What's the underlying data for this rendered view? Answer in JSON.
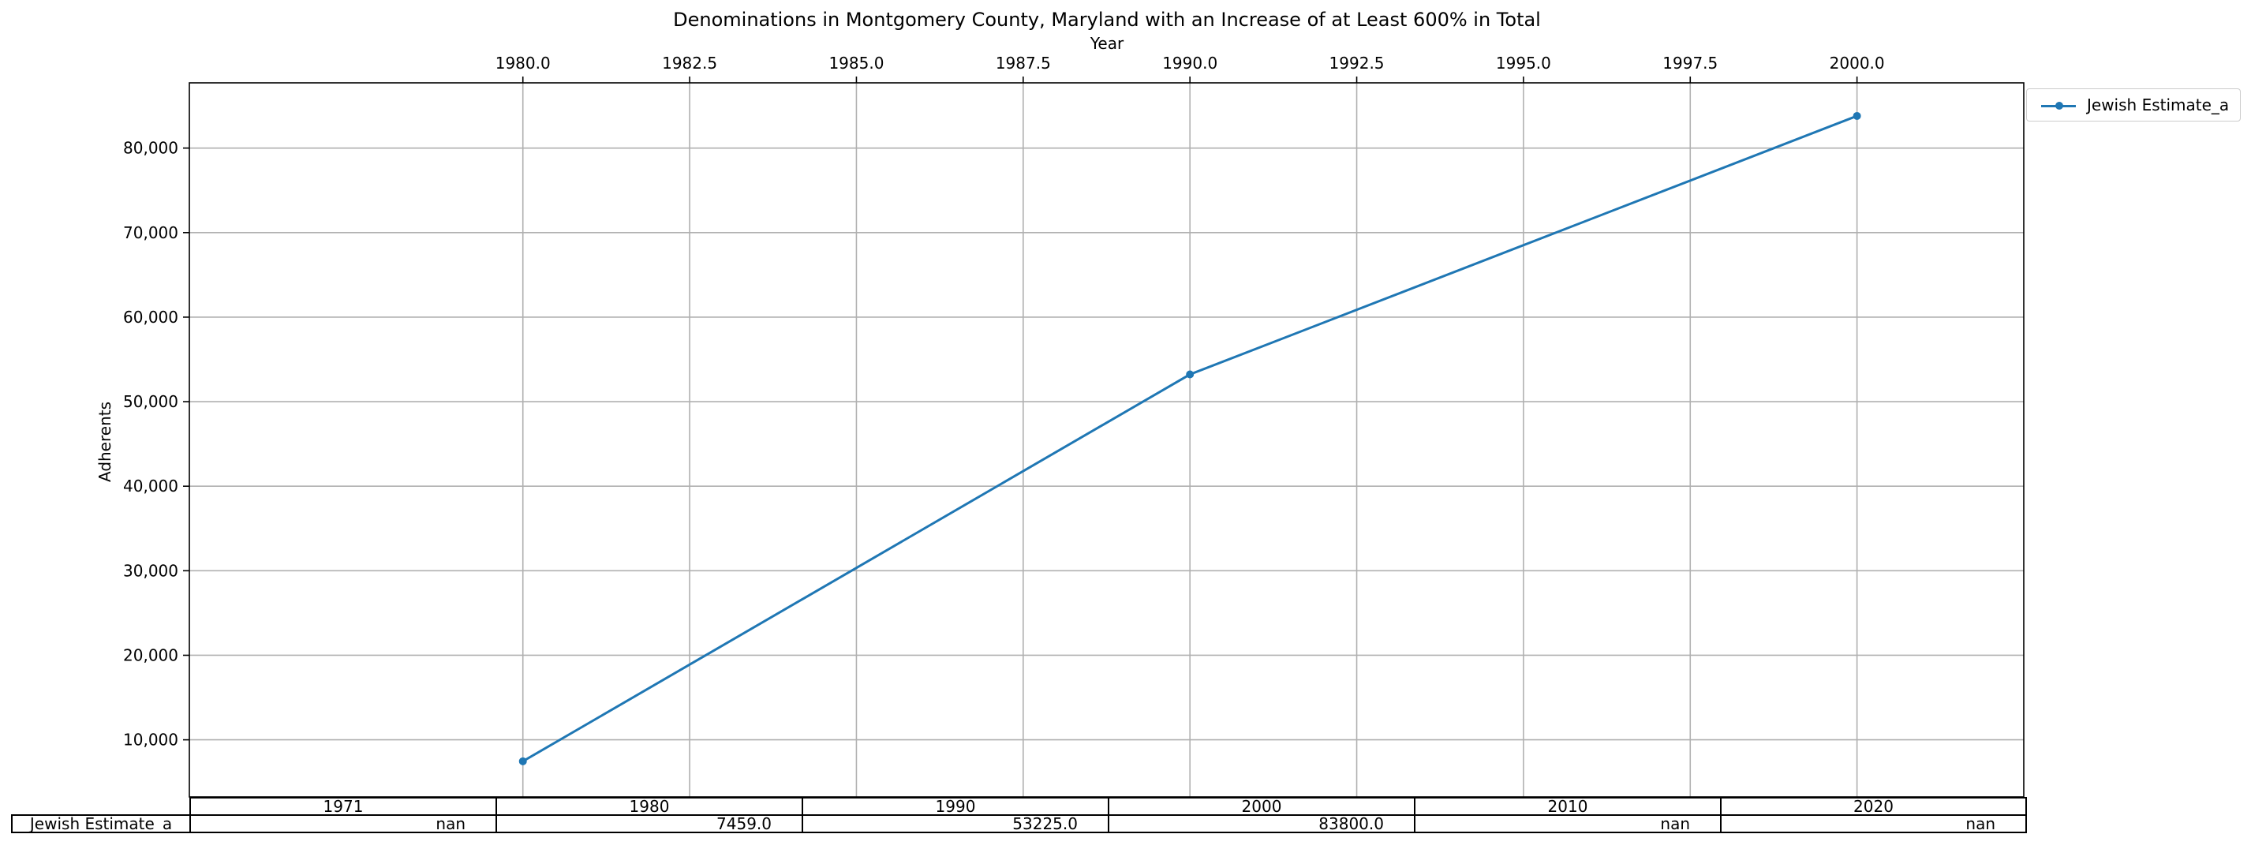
{
  "chart_data": {
    "type": "line",
    "title": "Denominations in Montgomery County, Maryland with an Increase of at Least 600% in Total",
    "xlabel": "Year",
    "ylabel": "Adherents",
    "xlim": [
      1975,
      2002.5
    ],
    "ylim": [
      3243,
      87716
    ],
    "x_ticks": [
      "1980.0",
      "1982.5",
      "1985.0",
      "1987.5",
      "1990.0",
      "1992.5",
      "1995.0",
      "1997.5",
      "2000.0"
    ],
    "x_tick_values": [
      1980,
      1982.5,
      1985,
      1987.5,
      1990,
      1992.5,
      1995,
      1997.5,
      2000
    ],
    "y_ticks": [
      "10,000",
      "20,000",
      "30,000",
      "40,000",
      "50,000",
      "60,000",
      "70,000",
      "80,000"
    ],
    "y_tick_values": [
      10000,
      20000,
      30000,
      40000,
      50000,
      60000,
      70000,
      80000
    ],
    "x_axis_position": "top",
    "grid": true,
    "legend_position": "outside-top-right",
    "series": [
      {
        "name": "Jewish Estimate_a",
        "color": "#1f77b4",
        "x": [
          1980,
          1990,
          2000
        ],
        "y": [
          7459,
          53225,
          83800
        ]
      }
    ],
    "table": {
      "columns": [
        "1971",
        "1980",
        "1990",
        "2000",
        "2010",
        "2020"
      ],
      "rows": [
        {
          "label": "Jewish Estimate_a",
          "values": [
            "nan",
            "7459.0",
            "53225.0",
            "83800.0",
            "nan",
            "nan"
          ]
        }
      ]
    }
  }
}
